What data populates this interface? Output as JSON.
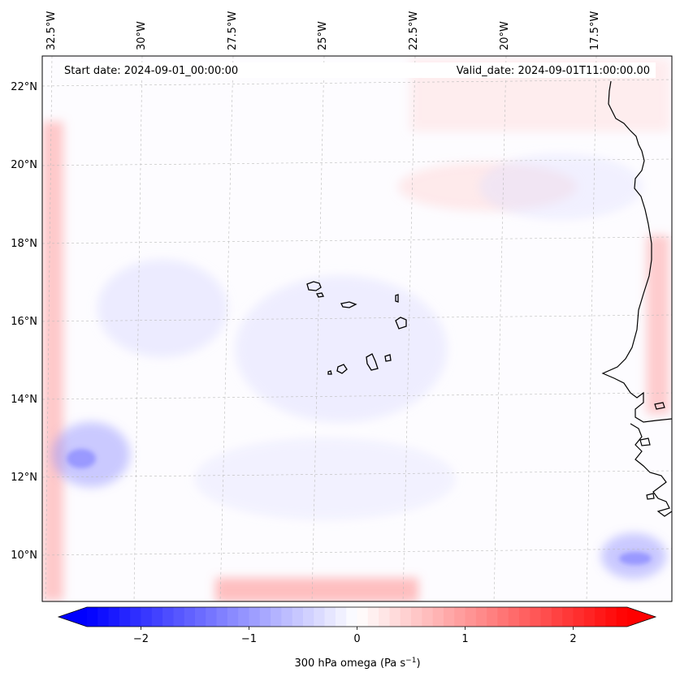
{
  "map": {
    "start_date": "Start date: 2024-09-01_00:00:00",
    "valid_date": "Valid_date: 2024-09-01T11:00:00.00",
    "lon_labels": [
      "32.5°W",
      "30°W",
      "27.5°W",
      "25°W",
      "22.5°W",
      "20°W",
      "17.5°W"
    ],
    "lat_labels": [
      "22°N",
      "20°N",
      "18°N",
      "16°N",
      "14°N",
      "12°N",
      "10°N"
    ],
    "colors": {
      "negative": "#0000ff",
      "neutral": "#ffffff",
      "positive": "#ff0000",
      "coastline": "#000000",
      "gridline": "#bbbbbb"
    }
  },
  "colorbar": {
    "label_main": "300 hPa omega (Pa s",
    "label_sup": "−1",
    "label_end": ")",
    "ticks": [
      {
        "value": -2,
        "text": "−2"
      },
      {
        "value": -1,
        "text": "−1"
      },
      {
        "value": 0,
        "text": "0"
      },
      {
        "value": 1,
        "text": "1"
      },
      {
        "value": 2,
        "text": "2"
      }
    ],
    "range": [
      -2.75,
      2.75
    ]
  }
}
